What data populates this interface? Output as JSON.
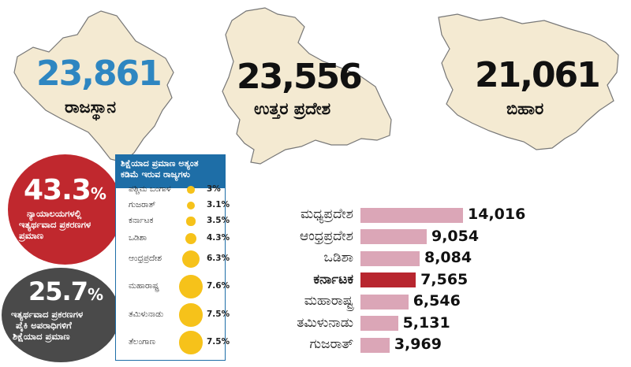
{
  "top_states": [
    {
      "name": "ರಾಜಸ್ಥಾನ",
      "value": "23,861",
      "color": "#2e86c1"
    },
    {
      "name": "ಉತ್ತರ ಪ್ರದೇಶ",
      "value": "23,556",
      "color": "#111111"
    },
    {
      "name": "ಬಿಹಾರ",
      "value": "21,061",
      "color": "#111111"
    }
  ],
  "stat_1": {
    "value": "43.3",
    "unit": "%",
    "line1": "ನ್ಯಾಯಾಲಯಗಳಲ್ಲಿ",
    "line2": "ಇತ್ಯರ್ಥವಾದ ಪ್ರಕರಣಗಳ",
    "line3": "ಪ್ರಮಾಣ",
    "color": "#c0282e"
  },
  "stat_2": {
    "value": "25.7",
    "unit": "%",
    "line1": "ಇತ್ಯರ್ಥವಾದ ಪ್ರಕರಣಗಳ",
    "line2": "ಪೈಕಿ ಅಪರಾಧಿಗಳಿಗೆ",
    "line3": "ಶಿಕ್ಷೆಯಾದ ಪ್ರಮಾಣ",
    "color": "#4a4a4a"
  },
  "panel": {
    "title_line1": "ಶಿಕ್ಷೆಯಾದ ಪ್ರಮಾಣ ಅತ್ಯಂತ",
    "title_line2": "ಕಡಿಮೆ ಇರುವ ರಾಜ್ಯಗಳು"
  },
  "chart_data": [
    {
      "type": "bubble",
      "title": "ಶಿಕ್ಷೆಯಾದ ಪ್ರಮಾಣ ಅತ್ಯಂತ ಕಡಿಮೆ ಇರುವ ರಾಜ್ಯಗಳು",
      "categories": [
        "ಪಶ್ಚಿಮ ಬಂಗಾಳ",
        "ಗುಜರಾತ್",
        "ಕರ್ನಾಟಕ",
        "ಒಡಿಶಾ",
        "ಆಂಧ್ರಪ್ರದೇಶ",
        "ಮಹಾರಾಷ್ಟ್ರ",
        "ತಮಿಳುನಾಡು",
        "ತೆಲಂಗಾಣ"
      ],
      "values": [
        3,
        3.1,
        3.5,
        4.3,
        6.3,
        7.6,
        7.5,
        7.5
      ],
      "labels": [
        "3%",
        "3.1%",
        "3.5%",
        "4.3%",
        "6.3%",
        "7.6%",
        "7.5%",
        "7.5%"
      ],
      "color": "#f6c21a"
    },
    {
      "type": "bar",
      "orientation": "horizontal",
      "categories": [
        "ಮಧ್ಯಪ್ರದೇಶ",
        "ಆಂಧ್ರಪ್ರದೇಶ",
        "ಒಡಿಶಾ",
        "ಕರ್ನಾಟಕ",
        "ತಮಿಳುನಾಡು",
        "ಗುಜರಾತ್"
      ],
      "values": [
        14016,
        9054,
        8084,
        7565,
        5131,
        3969
      ],
      "labels": [
        "14,016",
        "9,054",
        "8,084",
        "7,565",
        "5,131",
        "3,969"
      ],
      "highlight": "ಕರ್ನಾಟಕ",
      "bar_color": "#dba6b7",
      "highlight_color": "#b8262f",
      "xlim": [
        0,
        14016
      ]
    }
  ],
  "extra_bar": {
    "label": "ಮಹಾರಾಷ್ಟ್ರ",
    "value": 6546,
    "value_label": "6,546"
  }
}
